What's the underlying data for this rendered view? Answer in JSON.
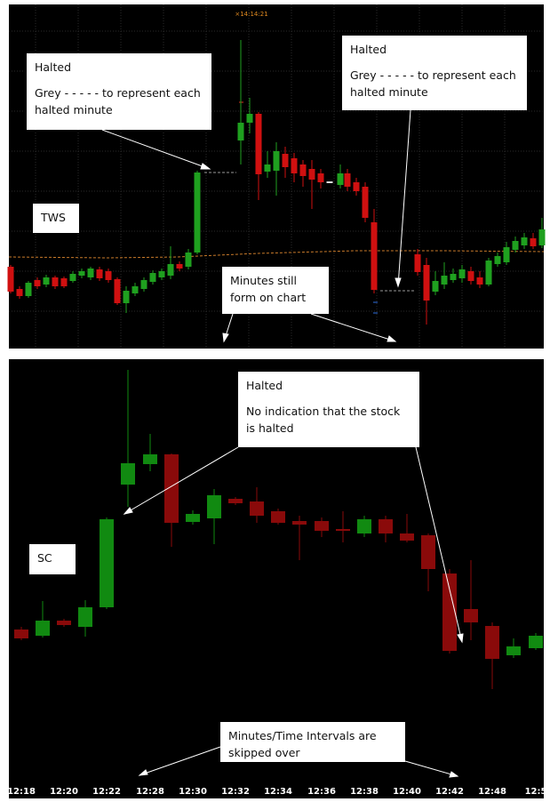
{
  "top_panel": {
    "timestamp": "×14:14:21",
    "label": "TWS",
    "annotations": [
      {
        "title": "Halted",
        "body": "Grey - - - - - to represent each halted minute"
      },
      {
        "title": "Halted",
        "body": "Grey - - - - - to represent each halted minute"
      },
      {
        "body": "Minutes still form on chart"
      }
    ]
  },
  "bottom_panel": {
    "label": "SC",
    "annotations": [
      {
        "title": "Halted",
        "body": "No indication that the stock is halted"
      },
      {
        "body": "Minutes/Time Intervals are skipped over"
      }
    ],
    "x_labels": [
      "12:18",
      "12:20",
      "12:22",
      "12:28",
      "12:30",
      "12:32",
      "12:34",
      "12:36",
      "12:38",
      "12:40",
      "12:42",
      "12:48",
      "12:5"
    ]
  }
}
